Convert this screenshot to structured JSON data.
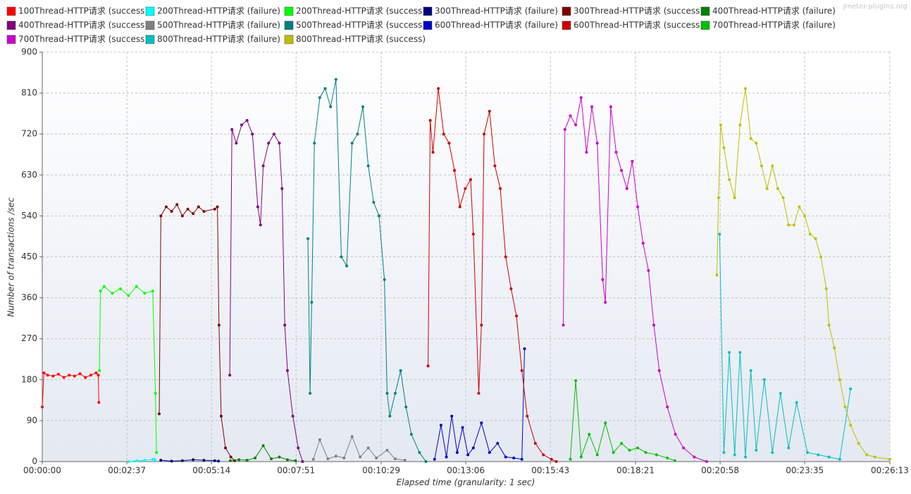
{
  "watermark": "jmeter-plugins.org",
  "chart_data": {
    "type": "line",
    "xlabel": "Elapsed time (granularity: 1 sec)",
    "ylabel": "Number of transactions /sec",
    "xlim": [
      0,
      1573
    ],
    "ylim": [
      0,
      900
    ],
    "xticks": [
      {
        "value": 0,
        "label": "00:00:00"
      },
      {
        "value": 157,
        "label": "00:02:37"
      },
      {
        "value": 314,
        "label": "00:05:14"
      },
      {
        "value": 471,
        "label": "00:07:51"
      },
      {
        "value": 629,
        "label": "00:10:29"
      },
      {
        "value": 786,
        "label": "00:13:06"
      },
      {
        "value": 943,
        "label": "00:15:43"
      },
      {
        "value": 1101,
        "label": "00:18:21"
      },
      {
        "value": 1258,
        "label": "00:20:58"
      },
      {
        "value": 1415,
        "label": "00:23:35"
      },
      {
        "value": 1573,
        "label": "00:26:13"
      }
    ],
    "yticks": [
      0,
      90,
      180,
      270,
      360,
      450,
      540,
      630,
      720,
      810,
      900
    ],
    "grid": true,
    "legend": "top",
    "series": [
      {
        "name": "100Thread-HTTP请求 (success)",
        "color": "#ff0000",
        "x": [
          0,
          3,
          10,
          20,
          30,
          40,
          50,
          60,
          70,
          80,
          90,
          100,
          104,
          105
        ],
        "values": [
          120,
          195,
          190,
          188,
          192,
          185,
          190,
          188,
          193,
          185,
          190,
          195,
          190,
          130
        ]
      },
      {
        "name": "200Thread-HTTP请求 (failure)",
        "color": "#00ffff",
        "x": [
          161,
          175,
          190,
          205,
          209
        ],
        "values": [
          0,
          2,
          3,
          5,
          4
        ]
      },
      {
        "name": "200Thread-HTTP请求 (success)",
        "color": "#00ff00",
        "x": [
          106,
          108,
          115,
          130,
          145,
          160,
          175,
          190,
          205,
          210,
          212
        ],
        "values": [
          200,
          375,
          385,
          370,
          380,
          365,
          385,
          370,
          375,
          150,
          20
        ]
      },
      {
        "name": "300Thread-HTTP请求 (failure)",
        "color": "#000080",
        "x": [
          220,
          240,
          260,
          280,
          300,
          320,
          327
        ],
        "values": [
          3,
          1,
          2,
          4,
          3,
          2,
          1
        ]
      },
      {
        "name": "300Thread-HTTP请求 (success)",
        "color": "#800000",
        "x": [
          217,
          220,
          230,
          240,
          250,
          260,
          270,
          280,
          290,
          300,
          320,
          325,
          328,
          332,
          340,
          350,
          357
        ],
        "values": [
          105,
          540,
          560,
          550,
          565,
          540,
          555,
          545,
          560,
          550,
          555,
          560,
          300,
          100,
          30,
          10,
          2
        ]
      },
      {
        "name": "400Thread-HTTP请求 (failure)",
        "color": "#008000",
        "x": [
          349,
          365,
          380,
          395,
          410,
          425,
          440,
          455,
          470
        ],
        "values": [
          2,
          4,
          3,
          8,
          35,
          6,
          10,
          4,
          2
        ]
      },
      {
        "name": "400Thread-HTTP请求 (success)",
        "color": "#800080",
        "x": [
          348,
          352,
          360,
          370,
          380,
          390,
          400,
          405,
          410,
          420,
          430,
          440,
          445,
          450,
          455,
          465,
          475,
          483
        ],
        "values": [
          190,
          730,
          700,
          740,
          750,
          720,
          560,
          520,
          650,
          700,
          720,
          700,
          600,
          300,
          200,
          100,
          30,
          0
        ]
      },
      {
        "name": "500Thread-HTTP请求 (failure)",
        "color": "#808080",
        "x": [
          503,
          515,
          530,
          545,
          560,
          575,
          590,
          605,
          620,
          640,
          655,
          673
        ],
        "values": [
          5,
          48,
          6,
          12,
          8,
          55,
          10,
          30,
          8,
          25,
          6,
          3
        ]
      },
      {
        "name": "500Thread-HTTP请求 (success)",
        "color": "#008080",
        "x": [
          493,
          497,
          500,
          505,
          515,
          525,
          535,
          545,
          555,
          565,
          575,
          585,
          595,
          605,
          615,
          625,
          635,
          640,
          645,
          655,
          665,
          675,
          685,
          700,
          712
        ],
        "values": [
          490,
          150,
          350,
          700,
          800,
          820,
          780,
          840,
          450,
          430,
          700,
          720,
          780,
          650,
          570,
          540,
          400,
          150,
          100,
          150,
          200,
          120,
          60,
          20,
          0
        ]
      },
      {
        "name": "600Thread-HTTP请求 (failure)",
        "color": "#0000cc",
        "x": [
          728,
          740,
          750,
          760,
          770,
          780,
          790,
          800,
          815,
          830,
          845,
          860,
          875,
          890,
          895
        ],
        "values": [
          5,
          80,
          10,
          100,
          20,
          75,
          15,
          30,
          85,
          20,
          40,
          10,
          8,
          5,
          248
        ]
      },
      {
        "name": "600Thread-HTTP请求 (success)",
        "color": "#cc0000",
        "x": [
          716,
          720,
          725,
          735,
          745,
          755,
          765,
          775,
          785,
          795,
          800,
          810,
          815,
          820,
          830,
          840,
          850,
          860,
          870,
          880,
          890,
          900,
          915,
          930,
          945,
          954
        ],
        "values": [
          210,
          750,
          680,
          820,
          720,
          700,
          640,
          560,
          600,
          620,
          500,
          150,
          300,
          720,
          770,
          650,
          600,
          450,
          380,
          320,
          200,
          100,
          40,
          15,
          5,
          0
        ]
      },
      {
        "name": "700Thread-HTTP请求 (failure)",
        "color": "#00c000",
        "x": [
          980,
          990,
          1000,
          1015,
          1030,
          1045,
          1060,
          1075,
          1090,
          1105,
          1120,
          1140,
          1160,
          1174
        ],
        "values": [
          5,
          178,
          10,
          60,
          15,
          85,
          20,
          40,
          25,
          30,
          20,
          15,
          8,
          2
        ]
      },
      {
        "name": "700Thread-HTTP请求 (success)",
        "color": "#cc00cc",
        "x": [
          967,
          970,
          980,
          990,
          1000,
          1010,
          1020,
          1030,
          1040,
          1045,
          1055,
          1065,
          1075,
          1085,
          1095,
          1105,
          1115,
          1125,
          1135,
          1145,
          1160,
          1175,
          1190,
          1210,
          1233
        ],
        "values": [
          300,
          730,
          760,
          740,
          800,
          680,
          780,
          700,
          400,
          350,
          780,
          680,
          640,
          600,
          660,
          560,
          480,
          420,
          300,
          200,
          120,
          60,
          30,
          10,
          0
        ]
      },
      {
        "name": "800Thread-HTTP请求 (failure)",
        "color": "#00c0c0",
        "x": [
          1257,
          1265,
          1275,
          1285,
          1295,
          1305,
          1315,
          1325,
          1340,
          1355,
          1370,
          1385,
          1400,
          1420,
          1440,
          1460,
          1480,
          1500
        ],
        "values": [
          500,
          20,
          240,
          15,
          240,
          10,
          200,
          25,
          180,
          20,
          150,
          30,
          130,
          20,
          15,
          10,
          5,
          160
        ]
      },
      {
        "name": "800Thread-HTTP请求 (success)",
        "color": "#bfbf00",
        "x": [
          1252,
          1255,
          1259,
          1265,
          1275,
          1285,
          1295,
          1305,
          1315,
          1325,
          1335,
          1345,
          1355,
          1365,
          1375,
          1385,
          1395,
          1405,
          1415,
          1425,
          1435,
          1445,
          1455,
          1460,
          1470,
          1480,
          1490,
          1500,
          1515,
          1530,
          1545,
          1573
        ],
        "values": [
          410,
          580,
          740,
          690,
          620,
          580,
          740,
          820,
          710,
          700,
          650,
          600,
          650,
          600,
          580,
          520,
          520,
          560,
          540,
          500,
          490,
          450,
          380,
          300,
          250,
          180,
          120,
          80,
          40,
          15,
          10,
          5
        ]
      }
    ]
  }
}
